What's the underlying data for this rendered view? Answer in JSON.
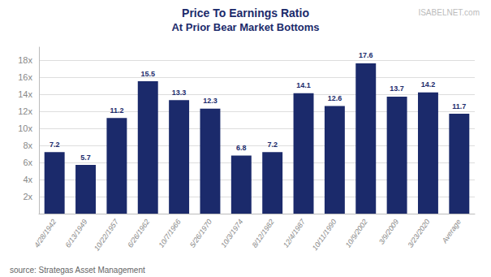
{
  "chart_data": {
    "type": "bar",
    "title": "Price To Earnings Ratio",
    "subtitle": "At Prior Bear Market Bottoms",
    "annotations": [
      "source: Strategas Asset Management",
      "ISABELNET.com"
    ],
    "categories": [
      "4/28/1942",
      "6/13/1949",
      "10/22/1957",
      "6/26/1962",
      "10/7/1966",
      "5/26/1970",
      "10/3/1974",
      "8/12/1982",
      "12/4/1987",
      "10/11/1990",
      "10/9/2002",
      "3/9/2009",
      "3/23/2020",
      "Average"
    ],
    "values": [
      7.2,
      5.7,
      11.2,
      15.5,
      13.3,
      12.3,
      6.8,
      7.2,
      14.1,
      12.6,
      17.6,
      13.7,
      14.2,
      11.7
    ],
    "color": "#1b2a6b",
    "ylim": [
      0,
      19.5
    ],
    "yticks": [
      {
        "value": 2,
        "label": "2x"
      },
      {
        "value": 4,
        "label": "4x"
      },
      {
        "value": 6,
        "label": "6x"
      },
      {
        "value": 8,
        "label": "8x"
      },
      {
        "value": 10,
        "label": "10x"
      },
      {
        "value": 12,
        "label": "12x"
      },
      {
        "value": 14,
        "label": "14x"
      },
      {
        "value": 16,
        "label": "16x"
      },
      {
        "value": 18,
        "label": "18x"
      }
    ],
    "grid": true,
    "data_labels": true
  }
}
